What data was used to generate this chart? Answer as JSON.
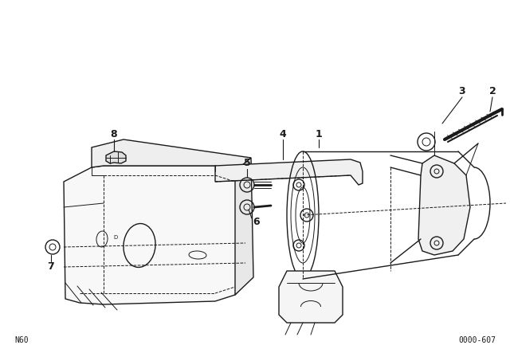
{
  "bg_color": "#ffffff",
  "line_color": "#1a1a1a",
  "fig_width": 6.4,
  "fig_height": 4.48,
  "dpi": 100,
  "bottom_left_text": "N60",
  "bottom_right_text": "0000-607"
}
